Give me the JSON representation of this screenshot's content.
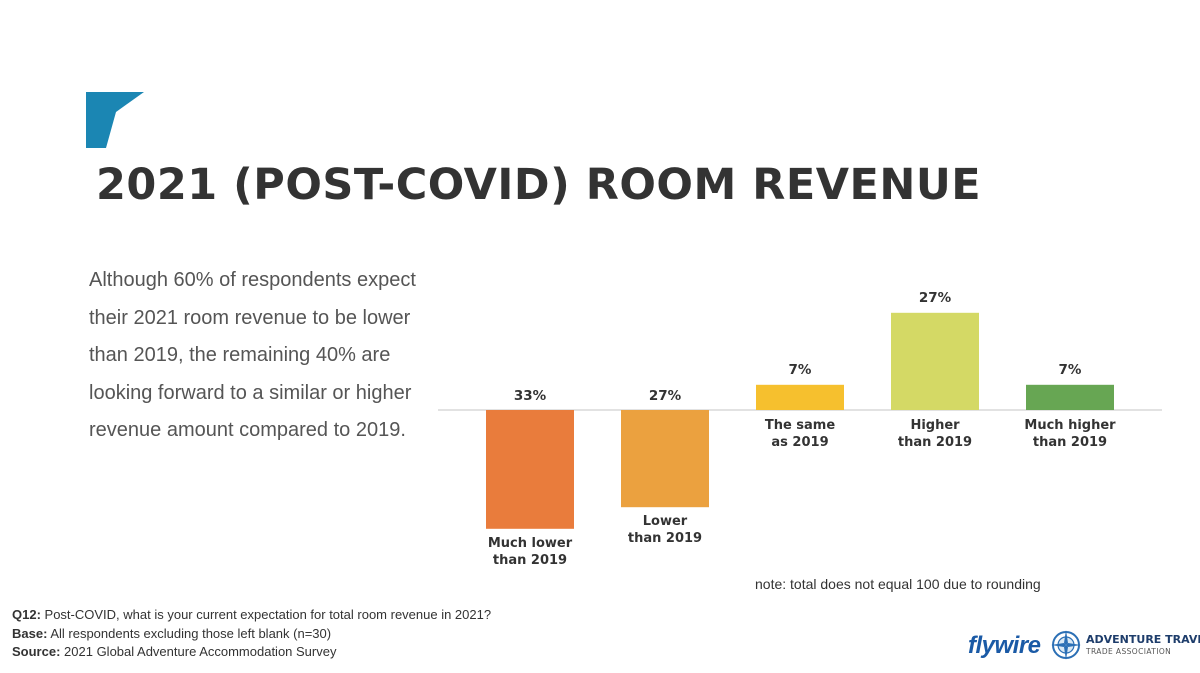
{
  "slide": {
    "title": "2021 (POST-COVID) ROOM REVENUE",
    "body": "Although 60% of respondents expect their 2021 room revenue to be lower than 2019, the remaining 40% are looking forward to a similar or higher revenue amount compared to 2019.",
    "accent_color": "#1b86b3"
  },
  "chart_data": {
    "type": "bar",
    "title": "",
    "xlabel": "",
    "ylabel": "",
    "note": "note: total does not equal 100 due to rounding",
    "categories": [
      {
        "lines": [
          "Much lower",
          "than 2019"
        ],
        "value": 33,
        "label": "33%",
        "direction": "below",
        "color": "#e97c3c"
      },
      {
        "lines": [
          "Lower",
          "than 2019"
        ],
        "value": 27,
        "label": "27%",
        "direction": "below",
        "color": "#eba13f"
      },
      {
        "lines": [
          "The same",
          "as 2019"
        ],
        "value": 7,
        "label": "7%",
        "direction": "above",
        "color": "#f6c02e"
      },
      {
        "lines": [
          "Higher",
          "than 2019"
        ],
        "value": 27,
        "label": "27%",
        "direction": "above",
        "color": "#d4d965"
      },
      {
        "lines": [
          "Much higher",
          "than 2019"
        ],
        "value": 7,
        "label": "7%",
        "direction": "above",
        "color": "#67a653"
      }
    ],
    "unit": "%",
    "grid": false,
    "legend": "none"
  },
  "footnotes": {
    "q_label": "Q12:",
    "q_text": "Post-COVID, what is your current expectation for total room revenue in 2021?",
    "base_label": "Base:",
    "base_text": "All respondents excluding those left blank (n=30)",
    "source_label": "Source:",
    "source_text": "2021 Global Adventure Accommodation Survey"
  },
  "logos": {
    "flywire": "flywire",
    "atta_name": "ADVENTURE TRAVEL",
    "atta_sub": "TRADE ASSOCIATION"
  }
}
